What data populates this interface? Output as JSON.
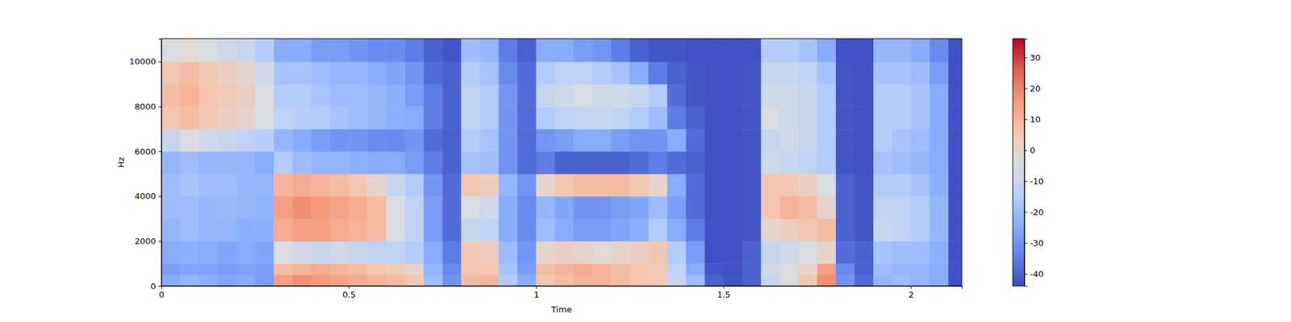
{
  "chart_data": {
    "type": "heatmap",
    "xlabel": "Time",
    "ylabel": "Hz",
    "xlim": [
      0,
      2.136
    ],
    "ylim": [
      0,
      11025
    ],
    "xticks": [
      0,
      0.5,
      1,
      1.5,
      2
    ],
    "yticks": [
      0,
      2000,
      4000,
      6000,
      8000,
      10000
    ],
    "x_bins": [
      0,
      0.05,
      0.1,
      0.15,
      0.2,
      0.25,
      0.3,
      0.35,
      0.4,
      0.45,
      0.5,
      0.55,
      0.6,
      0.65,
      0.7,
      0.75,
      0.8,
      0.85,
      0.9,
      0.95,
      1.0,
      1.05,
      1.1,
      1.15,
      1.2,
      1.25,
      1.3,
      1.35,
      1.4,
      1.45,
      1.5,
      1.55,
      1.6,
      1.65,
      1.7,
      1.75,
      1.8,
      1.85,
      1.9,
      1.95,
      2.0,
      2.05,
      2.1,
      2.136
    ],
    "y_bins": [
      0,
      500,
      1000,
      2000,
      3000,
      4000,
      5000,
      6000,
      7000,
      8000,
      9000,
      10000,
      11025
    ],
    "values": [
      [
        -25,
        -22,
        -24,
        -26,
        -25,
        -28,
        15,
        18,
        16,
        14,
        12,
        10,
        8,
        5,
        -20,
        -30,
        8,
        10,
        -15,
        -25,
        5,
        8,
        10,
        10,
        8,
        6,
        5,
        -10,
        -20,
        -40,
        -42,
        -40,
        -10,
        -5,
        5,
        18,
        -30,
        -38,
        -22,
        -20,
        -22,
        -25,
        -43
      ],
      [
        -28,
        -26,
        -27,
        -28,
        -27,
        -28,
        8,
        10,
        12,
        10,
        8,
        6,
        3,
        0,
        -22,
        -32,
        5,
        6,
        -18,
        -28,
        8,
        10,
        12,
        10,
        8,
        6,
        4,
        -12,
        -25,
        -42,
        -43,
        -40,
        -8,
        -5,
        0,
        15,
        -32,
        -40,
        -20,
        -22,
        -22,
        -25,
        -43
      ],
      [
        -25,
        -24,
        -25,
        -26,
        -25,
        -26,
        -5,
        -8,
        -10,
        -8,
        -10,
        -12,
        -12,
        -15,
        -25,
        -35,
        5,
        3,
        -20,
        -30,
        0,
        2,
        0,
        -2,
        0,
        2,
        5,
        -15,
        -28,
        -43,
        -43,
        -40,
        -10,
        -8,
        -5,
        0,
        -38,
        -40,
        -18,
        -20,
        -20,
        -24,
        -43
      ],
      [
        -22,
        -20,
        -22,
        -22,
        -24,
        -24,
        12,
        15,
        15,
        12,
        10,
        8,
        -5,
        -12,
        -28,
        -38,
        -10,
        -12,
        -25,
        -32,
        -20,
        -25,
        -28,
        -28,
        -26,
        -24,
        -15,
        -25,
        -35,
        -43,
        -43,
        -42,
        0,
        2,
        5,
        8,
        -40,
        -42,
        -10,
        -12,
        -15,
        -22,
        -43
      ],
      [
        -20,
        -20,
        -22,
        -21,
        -22,
        -23,
        15,
        18,
        16,
        14,
        12,
        8,
        -5,
        -12,
        -28,
        -38,
        -5,
        -8,
        -25,
        -32,
        -22,
        -26,
        -30,
        -30,
        -28,
        -26,
        -20,
        -28,
        -38,
        -43,
        -43,
        -42,
        5,
        10,
        8,
        0,
        -40,
        -42,
        -12,
        -12,
        -15,
        -22,
        -43
      ],
      [
        -20,
        -18,
        -20,
        -20,
        -22,
        -22,
        10,
        12,
        10,
        8,
        5,
        0,
        -10,
        -15,
        -30,
        -38,
        5,
        3,
        -22,
        -30,
        0,
        5,
        8,
        8,
        8,
        5,
        0,
        -25,
        -38,
        -43,
        -43,
        -42,
        5,
        5,
        2,
        -5,
        -40,
        -42,
        -15,
        -15,
        -18,
        -24,
        -43
      ],
      [
        -22,
        -20,
        -22,
        -22,
        -22,
        -25,
        -15,
        -20,
        -22,
        -22,
        -24,
        -25,
        -25,
        -28,
        -35,
        -40,
        -18,
        -20,
        -30,
        -38,
        -35,
        -40,
        -40,
        -40,
        -40,
        -38,
        -35,
        -38,
        -40,
        -43,
        -43,
        -42,
        -8,
        -10,
        -12,
        -15,
        -42,
        -43,
        -18,
        -20,
        -22,
        -25,
        -43
      ],
      [
        -10,
        -5,
        -8,
        -10,
        -12,
        -14,
        -22,
        -25,
        -28,
        -30,
        -30,
        -32,
        -32,
        -30,
        -38,
        -40,
        -15,
        -18,
        -30,
        -38,
        -30,
        -28,
        -25,
        -25,
        -28,
        -30,
        -30,
        -25,
        -38,
        -43,
        -43,
        -42,
        -10,
        -8,
        -10,
        -15,
        -42,
        -43,
        -15,
        -18,
        -20,
        -25,
        -43
      ],
      [
        5,
        8,
        5,
        2,
        0,
        -5,
        -12,
        -14,
        -15,
        -18,
        -20,
        -22,
        -24,
        -25,
        -35,
        -40,
        -12,
        -15,
        -30,
        -38,
        -15,
        -12,
        -10,
        -10,
        -12,
        -15,
        -20,
        -35,
        -40,
        -43,
        -43,
        -42,
        -5,
        -8,
        -10,
        -15,
        -42,
        -43,
        -15,
        -15,
        -18,
        -25,
        -43
      ],
      [
        8,
        10,
        6,
        4,
        2,
        -5,
        -15,
        -15,
        -18,
        -20,
        -20,
        -22,
        -24,
        -28,
        -35,
        -40,
        -12,
        -15,
        -30,
        -38,
        -10,
        -8,
        -5,
        -8,
        -8,
        -10,
        -15,
        -38,
        -42,
        -43,
        -43,
        -42,
        -8,
        -8,
        -10,
        -15,
        -42,
        -43,
        -15,
        -15,
        -18,
        -25,
        -43
      ],
      [
        5,
        8,
        5,
        2,
        0,
        -8,
        -18,
        -18,
        -20,
        -22,
        -22,
        -25,
        -26,
        -30,
        -38,
        -40,
        -15,
        -18,
        -32,
        -38,
        -15,
        -12,
        -12,
        -15,
        -18,
        -25,
        -35,
        -40,
        -42,
        -43,
        -43,
        -42,
        -10,
        -10,
        -12,
        -18,
        -42,
        -43,
        -18,
        -18,
        -20,
        -28,
        -43
      ],
      [
        -5,
        -2,
        -5,
        -8,
        -10,
        -15,
        -25,
        -25,
        -28,
        -28,
        -30,
        -32,
        -32,
        -35,
        -40,
        -42,
        -20,
        -22,
        -35,
        -40,
        -25,
        -25,
        -28,
        -30,
        -35,
        -40,
        -42,
        -42,
        -43,
        -43,
        -43,
        -43,
        -15,
        -15,
        -18,
        -25,
        -43,
        -43,
        -22,
        -22,
        -25,
        -32,
        -43
      ]
    ],
    "colorbar_range": [
      -43.9,
      36.1
    ],
    "colorbar_ticks": [
      -40,
      -30,
      -20,
      -10,
      0,
      10,
      20,
      30
    ]
  }
}
